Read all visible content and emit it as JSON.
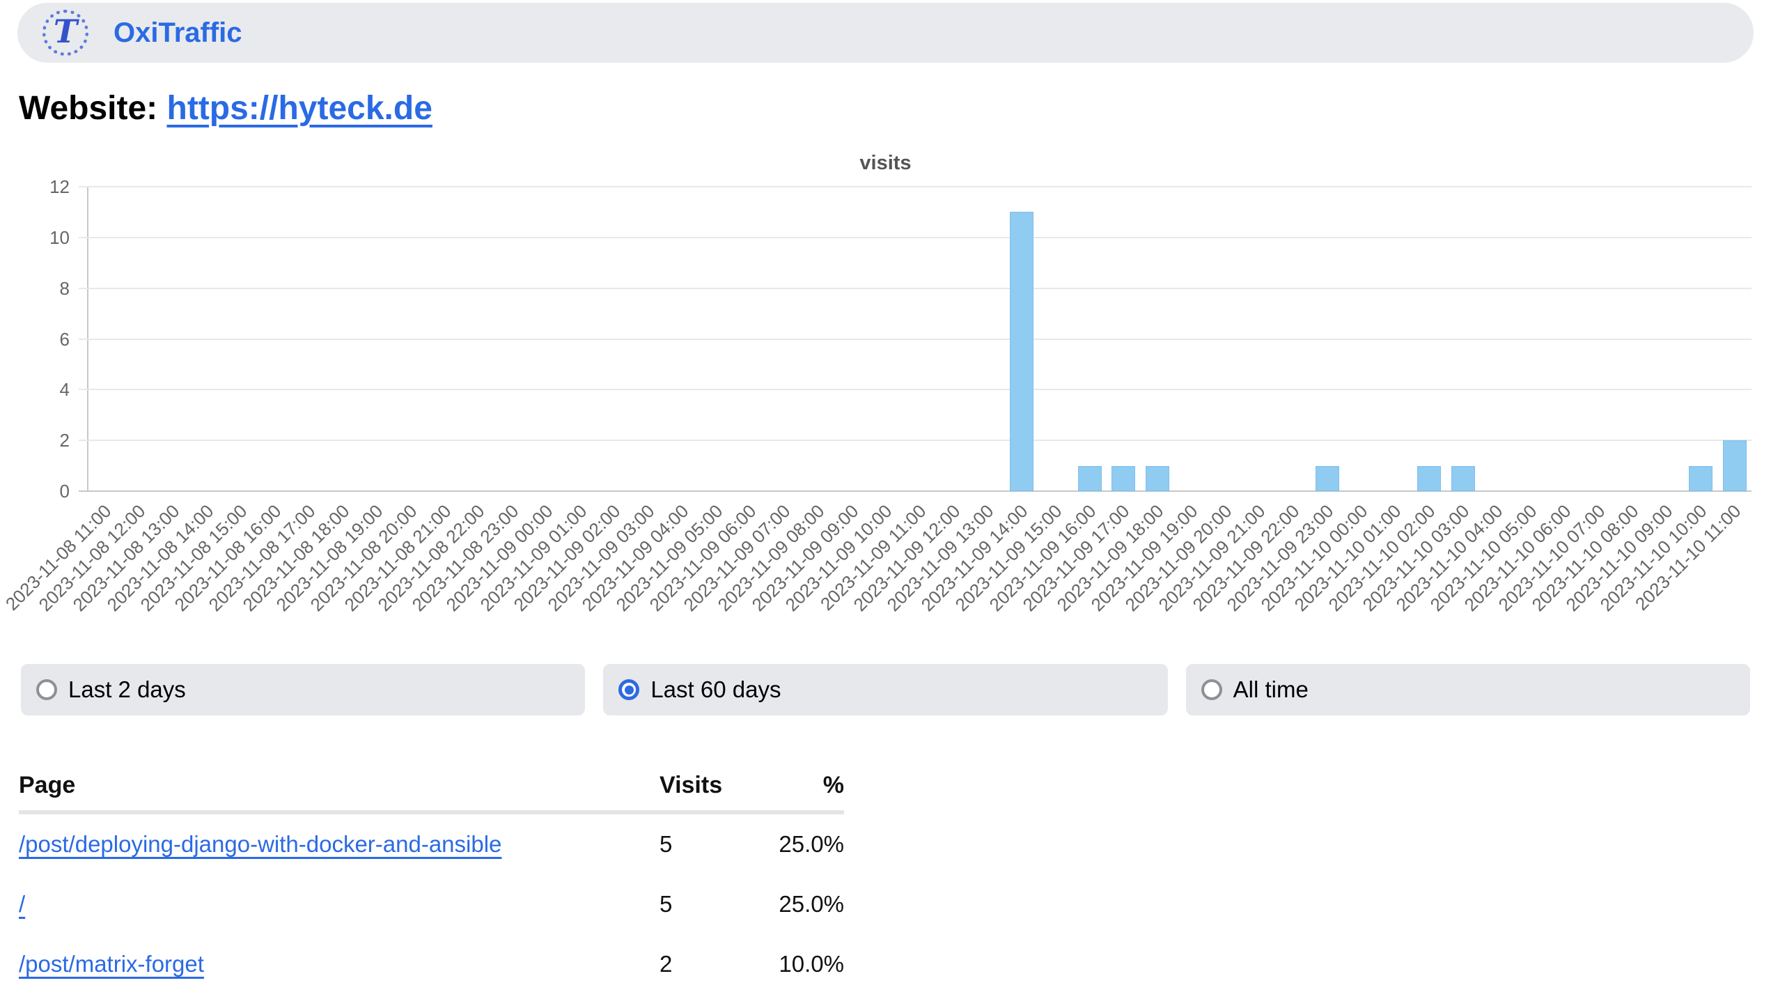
{
  "header": {
    "app_name": "OxiTraffic",
    "logo_glyph": "T"
  },
  "website": {
    "label": "Website:",
    "url_text": "https://hyteck.de"
  },
  "chart_data": {
    "type": "bar",
    "title": "visits",
    "categories": [
      "2023-11-08 11:00",
      "2023-11-08 12:00",
      "2023-11-08 13:00",
      "2023-11-08 14:00",
      "2023-11-08 15:00",
      "2023-11-08 16:00",
      "2023-11-08 17:00",
      "2023-11-08 18:00",
      "2023-11-08 19:00",
      "2023-11-08 20:00",
      "2023-11-08 21:00",
      "2023-11-08 22:00",
      "2023-11-08 23:00",
      "2023-11-09 00:00",
      "2023-11-09 01:00",
      "2023-11-09 02:00",
      "2023-11-09 03:00",
      "2023-11-09 04:00",
      "2023-11-09 05:00",
      "2023-11-09 06:00",
      "2023-11-09 07:00",
      "2023-11-09 08:00",
      "2023-11-09 09:00",
      "2023-11-09 10:00",
      "2023-11-09 11:00",
      "2023-11-09 12:00",
      "2023-11-09 13:00",
      "2023-11-09 14:00",
      "2023-11-09 15:00",
      "2023-11-09 16:00",
      "2023-11-09 17:00",
      "2023-11-09 18:00",
      "2023-11-09 19:00",
      "2023-11-09 20:00",
      "2023-11-09 21:00",
      "2023-11-09 22:00",
      "2023-11-09 23:00",
      "2023-11-10 00:00",
      "2023-11-10 01:00",
      "2023-11-10 02:00",
      "2023-11-10 03:00",
      "2023-11-10 04:00",
      "2023-11-10 05:00",
      "2023-11-10 06:00",
      "2023-11-10 07:00",
      "2023-11-10 08:00",
      "2023-11-10 09:00",
      "2023-11-10 10:00",
      "2023-11-10 11:00"
    ],
    "values": [
      0,
      0,
      0,
      0,
      0,
      0,
      0,
      0,
      0,
      0,
      0,
      0,
      0,
      0,
      0,
      0,
      0,
      0,
      0,
      0,
      0,
      0,
      0,
      0,
      0,
      0,
      0,
      11,
      0,
      1,
      1,
      1,
      0,
      0,
      0,
      0,
      1,
      0,
      0,
      1,
      1,
      0,
      0,
      0,
      0,
      0,
      0,
      1,
      2
    ],
    "ylim": [
      0,
      12
    ],
    "ytick_step": 2,
    "grid": "horizontal-only",
    "bar_color": "#90cbf2",
    "xlabel": "",
    "ylabel": ""
  },
  "filters": {
    "options": [
      {
        "label": "Last 2 days",
        "checked": false
      },
      {
        "label": "Last 60 days",
        "checked": true
      },
      {
        "label": "All time",
        "checked": false
      }
    ]
  },
  "table": {
    "headers": [
      "Page",
      "Visits",
      "%"
    ],
    "rows": [
      {
        "page": "/post/deploying-django-with-docker-and-ansible",
        "visits": "5",
        "percent": "25.0%"
      },
      {
        "page": "/",
        "visits": "5",
        "percent": "25.0%"
      },
      {
        "page": "/post/matrix-forget",
        "visits": "2",
        "percent": "10.0%"
      }
    ]
  },
  "colors": {
    "accent_blue": "#2a6ae4",
    "bar_fill": "#90cbf2",
    "pill_background": "#e8eaed",
    "gridline": "#e8e8e8",
    "axis_text": "#666666"
  }
}
